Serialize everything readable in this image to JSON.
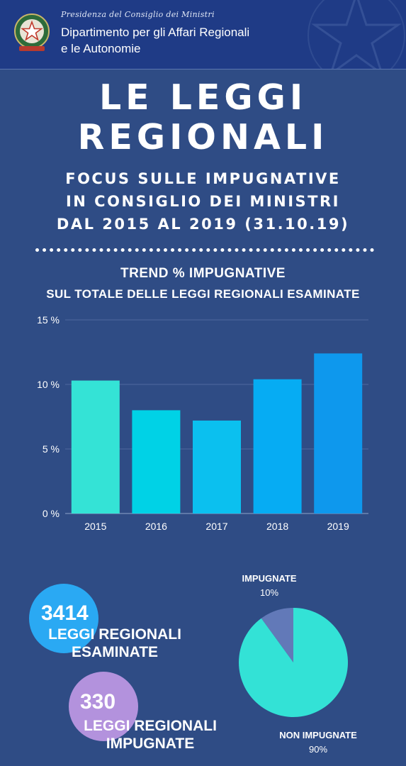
{
  "header": {
    "presidency": "Presidenza del Consiglio dei Ministri",
    "department_line1": "Dipartimento per gli Affari Regionali",
    "department_line2": "e le Autonomie"
  },
  "title": {
    "line1": "LE LEGGI",
    "line2": "REGIONALI"
  },
  "subtitle": {
    "line1": "FOCUS SULLE IMPUGNATIVE",
    "line2": "IN CONSIGLIO DEI MINISTRI",
    "line3": "DAL 2015 AL 2019 (31.10.19)"
  },
  "stats": {
    "examined_count": "3414",
    "examined_label_line1": "LEGGI REGIONALI",
    "examined_label_line2": "ESAMINATE",
    "challenged_count": "330",
    "challenged_label_line1": "LEGGI REGIONALI",
    "challenged_label_line2": "IMPUGNATE"
  },
  "colors": {
    "background": "#2f4c85",
    "header": "#1f3b86",
    "bars": [
      "#34e3d6",
      "#00d2e6",
      "#0bc0ef",
      "#06acf3",
      "#0e98ed"
    ],
    "pie_impugnate": "#6279b8",
    "pie_non_impugnate": "#33e2d6",
    "circle_examined": "#2aa9f3",
    "circle_challenged": "#b392dd"
  },
  "chart_data": [
    {
      "type": "bar",
      "title": "TREND % IMPUGNATIVE",
      "subtitle": "SUL TOTALE DELLE LEGGI REGIONALI ESAMINATE",
      "categories": [
        "2015",
        "2016",
        "2017",
        "2018",
        "2019"
      ],
      "values": [
        10.3,
        8.0,
        7.2,
        10.4,
        12.4
      ],
      "ylim": [
        0,
        15
      ],
      "yticks": [
        "0 %",
        "5 %",
        "10 %",
        "15 %"
      ],
      "ytick_values": [
        0,
        5,
        10,
        15
      ],
      "grid": true,
      "xlabel": "",
      "ylabel": ""
    },
    {
      "type": "pie",
      "slices": [
        {
          "label": "IMPUGNATE",
          "value": 10,
          "value_label": "10%"
        },
        {
          "label": "NON IMPUGNATE",
          "value": 90,
          "value_label": "90%"
        }
      ]
    }
  ]
}
